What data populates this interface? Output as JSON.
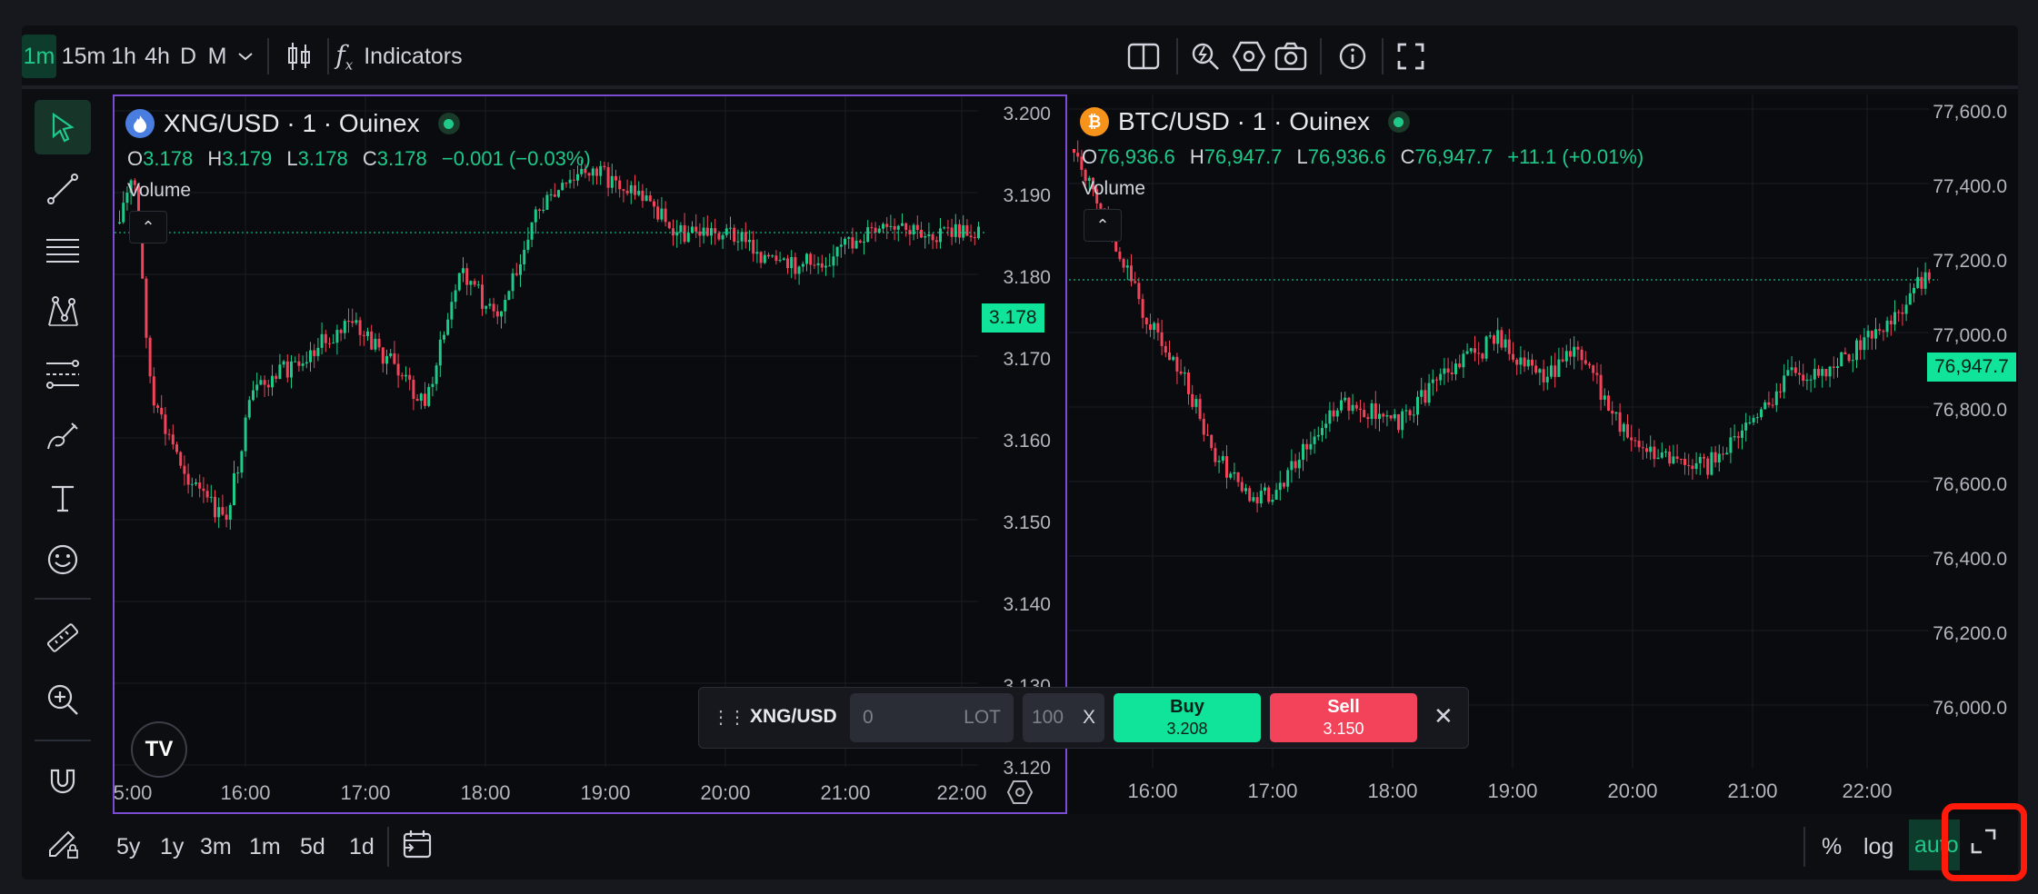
{
  "toolbar": {
    "intervals": [
      "1m",
      "15m",
      "1h",
      "4h",
      "D",
      "M"
    ],
    "active_interval": "1m",
    "indicators_label": "Indicators"
  },
  "left_chart": {
    "symbol": "XNG/USD · 1 · Ouinex",
    "ohlc": {
      "o": "3.178",
      "h": "3.179",
      "l": "3.178",
      "c": "3.178",
      "change": "−0.001 (−0.03%)"
    },
    "volume_label": "Volume",
    "price_ticks": [
      "3.200",
      "3.190",
      "3.180",
      "3.170",
      "3.160",
      "3.150",
      "3.140",
      "3.130",
      "3.120"
    ],
    "current_price": "3.178",
    "time_ticks": [
      "5:00",
      "16:00",
      "17:00",
      "18:00",
      "19:00",
      "20:00",
      "21:00",
      "22:00"
    ],
    "logo_text": "TV"
  },
  "right_chart": {
    "symbol": "BTC/USD · 1 · Ouinex",
    "ohlc": {
      "o": "76,936.6",
      "h": "76,947.7",
      "l": "76,936.6",
      "c": "76,947.7",
      "change": "+11.1 (+0.01%)"
    },
    "volume_label": "Volume",
    "price_ticks": [
      "77,600.0",
      "77,400.0",
      "77,200.0",
      "77,000.0",
      "76,800.0",
      "76,600.0",
      "76,400.0",
      "76,200.0",
      "76,000.0"
    ],
    "current_price": "76,947.7",
    "time_ticks": [
      "16:00",
      "17:00",
      "18:00",
      "19:00",
      "20:00",
      "21:00",
      "22:00"
    ]
  },
  "trade_panel": {
    "symbol": "XNG/USD",
    "lot_value": "0",
    "lot_unit": "LOT",
    "percent_value": "100",
    "percent_clear": "X",
    "buy_label": "Buy",
    "buy_price": "3.208",
    "sell_label": "Sell",
    "sell_price": "3.150",
    "close": "✕"
  },
  "bottom_bar": {
    "ranges": [
      "5y",
      "1y",
      "3m",
      "1m",
      "5d",
      "1d"
    ],
    "percent": "%",
    "log": "log",
    "auto": "auto"
  },
  "colors": {
    "up": "#1ec98a",
    "down": "#f2435a",
    "accent": "#10e39a",
    "highlight": "#ff1a0a"
  }
}
